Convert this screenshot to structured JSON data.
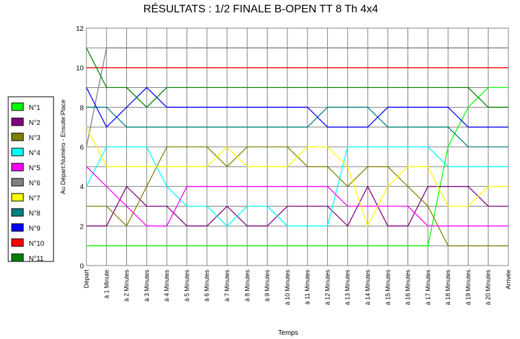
{
  "chart_data": {
    "type": "line",
    "title": "RÉSULTATS : 1/2 FINALE B-OPEN TT 8 Th 4x4",
    "y_label": "Au Départ:Numéro - Ensuite:Place",
    "x_label": "Temps",
    "categories": [
      "Départ",
      "à 1 Minute",
      "à 2 Minutes",
      "à 3 Minutes",
      "à 4 Minutes",
      "à 5 Minutes",
      "à 6 Minutes",
      "à 7 Minutes",
      "à 8 Minutes",
      "à 9 Minutes",
      "à 10 Minutes",
      "à 11 Minutes",
      "à 12 Minutes",
      "à 13 Minutes",
      "à 14 Minutes",
      "à 15 Minutes",
      "à 16 Minutes",
      "à 17 Minutes",
      "à 18 Minutes",
      "à 19 Minutes",
      "à 20 Minutes",
      "Arrivée"
    ],
    "ylim": [
      0,
      12
    ],
    "yticks": [
      0,
      2,
      4,
      6,
      8,
      10,
      12
    ],
    "y_minor_ticks": [
      1,
      3,
      5,
      7,
      9,
      11
    ],
    "grid": true,
    "series": [
      {
        "name": "N°1",
        "color": "#00ff00",
        "values": [
          1,
          1,
          1,
          1,
          1,
          1,
          1,
          1,
          1,
          1,
          1,
          1,
          1,
          1,
          1,
          1,
          1,
          1,
          6,
          8,
          9,
          9
        ]
      },
      {
        "name": "N°2",
        "color": "#800080",
        "values": [
          2,
          2,
          4,
          3,
          3,
          2,
          2,
          3,
          2,
          2,
          3,
          3,
          3,
          2,
          4,
          2,
          2,
          4,
          4,
          4,
          3,
          3
        ]
      },
      {
        "name": "N°3",
        "color": "#808000",
        "values": [
          3,
          3,
          2,
          4,
          6,
          6,
          6,
          5,
          6,
          6,
          6,
          5,
          5,
          4,
          5,
          5,
          4,
          3,
          1,
          1,
          1,
          1
        ]
      },
      {
        "name": "N°4",
        "color": "#00ffff",
        "values": [
          4,
          6,
          6,
          6,
          4,
          3,
          3,
          2,
          3,
          3,
          2,
          2,
          2,
          6,
          6,
          6,
          6,
          6,
          5,
          5,
          5,
          5
        ]
      },
      {
        "name": "N°5",
        "color": "#ff00ff",
        "values": [
          5,
          4,
          3,
          2,
          2,
          4,
          4,
          4,
          4,
          4,
          4,
          4,
          4,
          3,
          3,
          3,
          3,
          2,
          2,
          2,
          2,
          2
        ]
      },
      {
        "name": "N°6",
        "color": "#808080",
        "values": [
          6,
          11,
          11,
          11,
          11,
          11,
          11,
          11,
          11,
          11,
          11,
          11,
          11,
          11,
          11,
          11,
          11,
          11,
          11,
          11,
          11,
          11
        ]
      },
      {
        "name": "N°7",
        "color": "#ffff00",
        "values": [
          7,
          5,
          5,
          5,
          5,
          5,
          5,
          6,
          5,
          5,
          5,
          6,
          6,
          5,
          2,
          4,
          5,
          5,
          3,
          3,
          4,
          4
        ]
      },
      {
        "name": "N°8",
        "color": "#008080",
        "values": [
          8,
          8,
          7,
          7,
          7,
          7,
          7,
          7,
          7,
          7,
          7,
          7,
          8,
          8,
          8,
          7,
          7,
          7,
          7,
          6,
          6,
          6
        ]
      },
      {
        "name": "N°9",
        "color": "#0000ff",
        "values": [
          9,
          7,
          8,
          9,
          8,
          8,
          8,
          8,
          8,
          8,
          8,
          8,
          7,
          7,
          7,
          8,
          8,
          8,
          8,
          7,
          7,
          7
        ]
      },
      {
        "name": "N°10",
        "color": "#ff0000",
        "values": [
          10,
          10,
          10,
          10,
          10,
          10,
          10,
          10,
          10,
          10,
          10,
          10,
          10,
          10,
          10,
          10,
          10,
          10,
          10,
          10,
          10,
          10
        ]
      },
      {
        "name": "N°11",
        "color": "#008000",
        "values": [
          11,
          9,
          9,
          8,
          9,
          9,
          9,
          9,
          9,
          9,
          9,
          9,
          9,
          9,
          9,
          9,
          9,
          9,
          9,
          9,
          8,
          8
        ]
      }
    ]
  }
}
